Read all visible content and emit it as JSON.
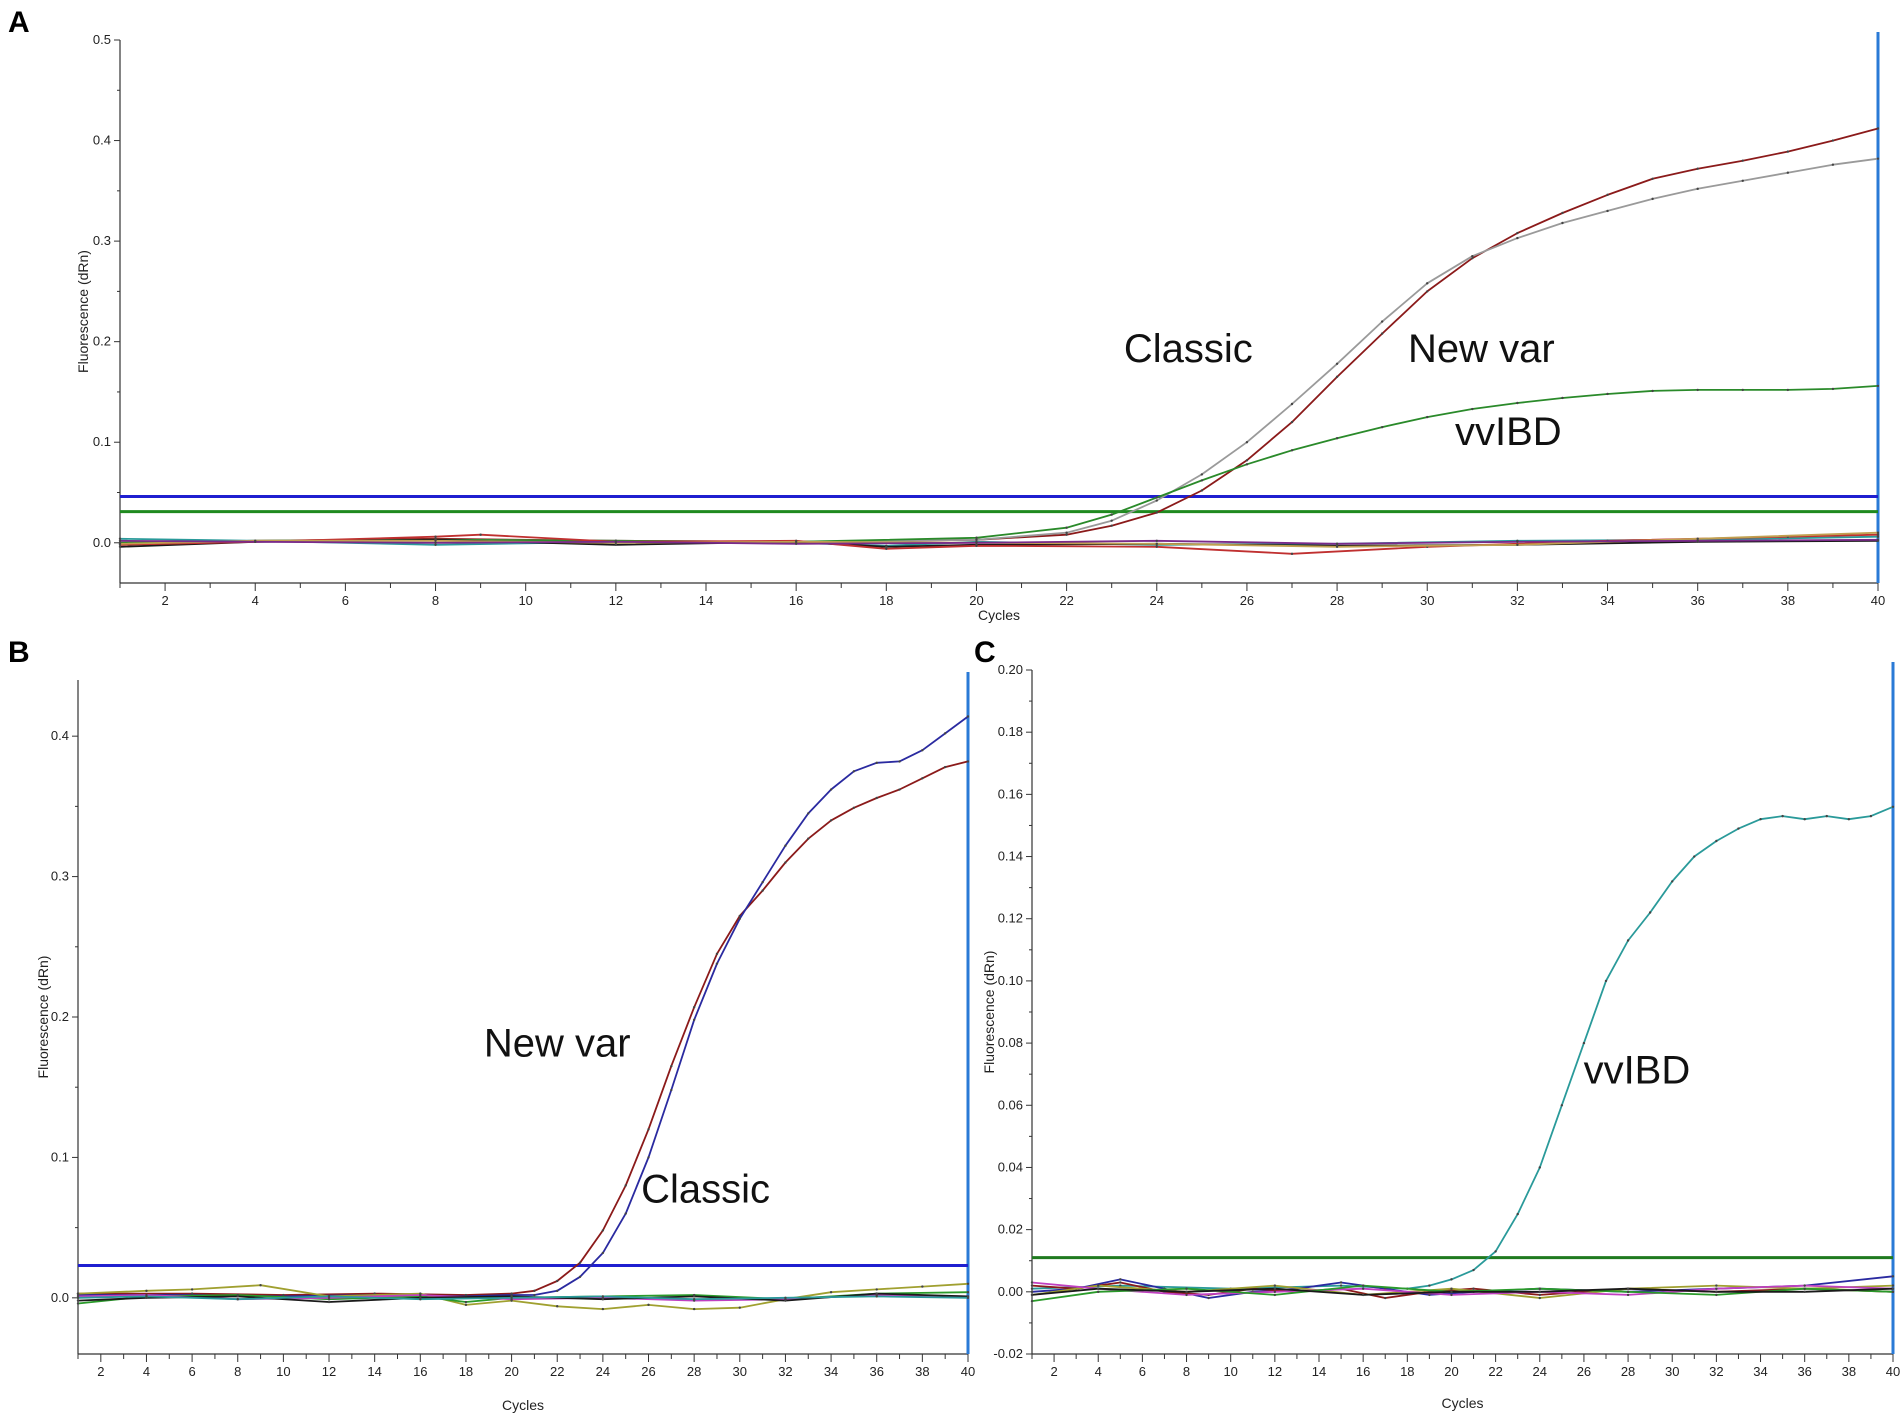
{
  "chart_data": [
    {
      "panel": "A",
      "type": "line",
      "xlabel": "Cycles",
      "ylabel": "Fluorescence (dRn)",
      "xlim": [
        1,
        40
      ],
      "ylim": [
        -0.04,
        0.5
      ],
      "xticks": [
        2,
        4,
        6,
        8,
        10,
        12,
        14,
        16,
        18,
        20,
        22,
        24,
        26,
        28,
        30,
        32,
        34,
        36,
        38,
        40
      ],
      "yticks": [
        0.0,
        0.1,
        0.2,
        0.3,
        0.4,
        0.5
      ],
      "ytick_labels": [
        "0.0",
        "0.1",
        "0.2",
        "0.3",
        "0.4",
        "0.5"
      ],
      "grid": false,
      "thresholds": [
        {
          "y": 0.046,
          "color": "#1f1fd0"
        },
        {
          "y": 0.031,
          "color": "#1f8a1f"
        }
      ],
      "annotations": [
        {
          "text": "Classic",
          "x": 24.7,
          "y": 0.18
        },
        {
          "text": "New var",
          "x": 31.2,
          "y": 0.18
        },
        {
          "text": "vvIBD",
          "x": 31.8,
          "y": 0.097
        }
      ],
      "series": [
        {
          "color": "#8b1a1a",
          "x": [
            1,
            4,
            8,
            12,
            16,
            20,
            22,
            23,
            24,
            25,
            26,
            27,
            28,
            29,
            30,
            31,
            32,
            33,
            34,
            35,
            36,
            37,
            38,
            39,
            40
          ],
          "y": [
            0,
            0.002,
            0.004,
            0.002,
            0.001,
            0.003,
            0.008,
            0.017,
            0.03,
            0.052,
            0.082,
            0.12,
            0.165,
            0.208,
            0.25,
            0.283,
            0.308,
            0.328,
            0.346,
            0.362,
            0.372,
            0.38,
            0.389,
            0.4,
            0.412
          ]
        },
        {
          "color": "#9a9a9a",
          "x": [
            1,
            4,
            8,
            12,
            16,
            20,
            22,
            23,
            24,
            25,
            26,
            27,
            28,
            29,
            30,
            31,
            32,
            33,
            34,
            35,
            36,
            37,
            38,
            39,
            40
          ],
          "y": [
            0,
            0.002,
            0.003,
            0.002,
            0.001,
            0.003,
            0.01,
            0.022,
            0.042,
            0.068,
            0.1,
            0.138,
            0.178,
            0.22,
            0.258,
            0.285,
            0.303,
            0.318,
            0.33,
            0.342,
            0.352,
            0.36,
            0.368,
            0.376,
            0.382
          ]
        },
        {
          "color": "#2a8a2a",
          "x": [
            1,
            4,
            8,
            12,
            16,
            20,
            22,
            23,
            24,
            25,
            26,
            27,
            28,
            29,
            30,
            31,
            32,
            33,
            34,
            35,
            36,
            37,
            38,
            39,
            40
          ],
          "y": [
            0,
            0.002,
            0.003,
            0.002,
            0.001,
            0.005,
            0.015,
            0.028,
            0.045,
            0.062,
            0.078,
            0.092,
            0.104,
            0.115,
            0.125,
            0.133,
            0.139,
            0.144,
            0.148,
            0.151,
            0.152,
            0.152,
            0.152,
            0.153,
            0.156
          ]
        },
        {
          "color": "#2a9a9a",
          "x": [
            1,
            4,
            8,
            12,
            16,
            18,
            20,
            24,
            28,
            32,
            36,
            40
          ],
          "y": [
            0.004,
            0.002,
            -0.002,
            0.001,
            0.0,
            -0.003,
            0.001,
            -0.002,
            -0.001,
            0.002,
            0.003,
            0.006
          ]
        },
        {
          "color": "#1a1a1a",
          "x": [
            1,
            4,
            8,
            12,
            16,
            18,
            20,
            24,
            28,
            32,
            36,
            40
          ],
          "y": [
            -0.004,
            0.001,
            0.003,
            -0.002,
            0.001,
            -0.004,
            -0.002,
            -0.001,
            -0.003,
            -0.002,
            0.001,
            0.002
          ]
        },
        {
          "color": "#c03030",
          "x": [
            1,
            4,
            8,
            9,
            12,
            16,
            18,
            20,
            24,
            27,
            30,
            34,
            38,
            40
          ],
          "y": [
            -0.002,
            0.001,
            0.006,
            0.008,
            0.001,
            0.002,
            -0.006,
            -0.003,
            -0.004,
            -0.011,
            -0.004,
            0.002,
            0.006,
            0.008
          ]
        },
        {
          "color": "#c0a050",
          "x": [
            1,
            4,
            8,
            12,
            16,
            20,
            24,
            28,
            32,
            36,
            40
          ],
          "y": [
            -0.001,
            0.002,
            0.002,
            0.0,
            0.001,
            0.0,
            -0.001,
            -0.004,
            -0.002,
            0.004,
            0.01
          ]
        },
        {
          "color": "#7a2a8a",
          "x": [
            1,
            4,
            8,
            12,
            16,
            20,
            24,
            28,
            32,
            36,
            40
          ],
          "y": [
            0.002,
            0.001,
            0.0,
            0.001,
            -0.001,
            0.0,
            0.002,
            -0.001,
            0.001,
            0.002,
            0.003
          ]
        }
      ]
    },
    {
      "panel": "B",
      "type": "line",
      "xlabel": "Cycles",
      "ylabel": "Fluorescence (dRn)",
      "xlim": [
        1,
        40
      ],
      "ylim": [
        -0.04,
        0.44
      ],
      "xticks": [
        2,
        4,
        6,
        8,
        10,
        12,
        14,
        16,
        18,
        20,
        22,
        24,
        26,
        28,
        30,
        32,
        34,
        36,
        38,
        40
      ],
      "yticks": [
        0.0,
        0.1,
        0.2,
        0.3,
        0.4
      ],
      "ytick_labels": [
        "0.0",
        "0.1",
        "0.2",
        "0.3",
        "0.4"
      ],
      "grid": false,
      "thresholds": [
        {
          "y": 0.023,
          "color": "#1f1fd0"
        }
      ],
      "annotations": [
        {
          "text": "New var",
          "x": 22.0,
          "y": 0.172
        },
        {
          "text": "Classic",
          "x": 28.5,
          "y": 0.068
        }
      ],
      "series": [
        {
          "color": "#8b1a1a",
          "x": [
            1,
            6,
            10,
            14,
            18,
            20,
            21,
            22,
            23,
            24,
            25,
            26,
            27,
            28,
            29,
            30,
            31,
            32,
            33,
            34,
            35,
            36,
            37,
            38,
            39,
            40
          ],
          "y": [
            0.003,
            0.003,
            0.002,
            0.003,
            0.002,
            0.003,
            0.005,
            0.012,
            0.025,
            0.048,
            0.08,
            0.12,
            0.165,
            0.207,
            0.245,
            0.272,
            0.29,
            0.31,
            0.327,
            0.34,
            0.349,
            0.356,
            0.362,
            0.37,
            0.378,
            0.382
          ]
        },
        {
          "color": "#2a2aa0",
          "x": [
            1,
            6,
            10,
            14,
            18,
            20,
            21,
            22,
            23,
            24,
            25,
            26,
            27,
            28,
            29,
            30,
            31,
            32,
            33,
            34,
            35,
            36,
            37,
            38,
            39,
            40
          ],
          "y": [
            0.002,
            0.002,
            0.001,
            0.002,
            0.001,
            0.002,
            0.002,
            0.005,
            0.015,
            0.032,
            0.06,
            0.1,
            0.148,
            0.198,
            0.238,
            0.27,
            0.296,
            0.322,
            0.345,
            0.362,
            0.375,
            0.381,
            0.382,
            0.39,
            0.402,
            0.414
          ]
        },
        {
          "color": "#a0a030",
          "x": [
            1,
            4,
            6,
            9,
            12,
            16,
            18,
            20,
            22,
            24,
            26,
            28,
            30,
            32,
            34,
            36,
            38,
            40
          ],
          "y": [
            0.003,
            0.005,
            0.006,
            0.009,
            0.001,
            0.003,
            -0.005,
            -0.002,
            -0.006,
            -0.008,
            -0.005,
            -0.008,
            -0.007,
            -0.001,
            0.004,
            0.006,
            0.008,
            0.01
          ]
        },
        {
          "color": "#2a9a2a",
          "x": [
            1,
            4,
            8,
            12,
            16,
            18,
            20,
            24,
            28,
            32,
            36,
            40
          ],
          "y": [
            -0.004,
            0.001,
            0.002,
            -0.001,
            0.001,
            -0.003,
            0.0,
            0.001,
            0.002,
            -0.001,
            0.003,
            0.004
          ]
        },
        {
          "color": "#c040c0",
          "x": [
            1,
            4,
            8,
            12,
            16,
            20,
            24,
            28,
            32,
            36,
            40
          ],
          "y": [
            0.001,
            0.002,
            -0.001,
            0.0,
            0.002,
            -0.001,
            0.0,
            -0.002,
            -0.001,
            0.002,
            0.001
          ]
        },
        {
          "color": "#1a1a1a",
          "x": [
            1,
            4,
            8,
            12,
            16,
            20,
            24,
            28,
            32,
            36,
            40
          ],
          "y": [
            -0.002,
            0.0,
            0.001,
            -0.003,
            0.0,
            0.001,
            -0.001,
            0.001,
            -0.002,
            0.003,
            0.001
          ]
        },
        {
          "color": "#2a9a9a",
          "x": [
            1,
            4,
            8,
            12,
            16,
            20,
            24,
            28,
            32,
            36,
            40
          ],
          "y": [
            0.0,
            0.001,
            -0.001,
            0.001,
            -0.001,
            0.0,
            0.001,
            -0.001,
            0.0,
            0.001,
            0.0
          ]
        }
      ]
    },
    {
      "panel": "C",
      "type": "line",
      "xlabel": "Cycles",
      "ylabel": "Fluorescence (dRn)",
      "xlim": [
        1,
        40
      ],
      "ylim": [
        -0.02,
        0.2
      ],
      "xticks": [
        2,
        4,
        6,
        8,
        10,
        12,
        14,
        16,
        18,
        20,
        22,
        24,
        26,
        28,
        30,
        32,
        34,
        36,
        38,
        40
      ],
      "yticks": [
        -0.02,
        0.0,
        0.02,
        0.04,
        0.06,
        0.08,
        0.1,
        0.12,
        0.14,
        0.16,
        0.18,
        0.2
      ],
      "ytick_labels": [
        "-0.02",
        "0.00",
        "0.02",
        "0.04",
        "0.06",
        "0.08",
        "0.10",
        "0.12",
        "0.14",
        "0.16",
        "0.18",
        "0.20"
      ],
      "grid": false,
      "thresholds": [
        {
          "y": 0.011,
          "color": "#1f7a1f"
        }
      ],
      "annotations": [
        {
          "text": "vvIBD",
          "x": 28.4,
          "y": 0.067
        }
      ],
      "series": [
        {
          "color": "#2a9a9a",
          "x": [
            1,
            5,
            10,
            15,
            18,
            19,
            20,
            21,
            22,
            23,
            24,
            25,
            26,
            27,
            28,
            29,
            30,
            31,
            32,
            33,
            34,
            35,
            36,
            37,
            38,
            39,
            40
          ],
          "y": [
            0.001,
            0.002,
            0.001,
            0.002,
            0.001,
            0.002,
            0.004,
            0.007,
            0.013,
            0.025,
            0.04,
            0.06,
            0.08,
            0.1,
            0.113,
            0.122,
            0.132,
            0.14,
            0.145,
            0.149,
            0.152,
            0.153,
            0.152,
            0.153,
            0.152,
            0.153,
            0.156
          ]
        },
        {
          "color": "#2a2aa0",
          "x": [
            1,
            3,
            5,
            7,
            9,
            11,
            13,
            15,
            17,
            19,
            21,
            24,
            28,
            32,
            36,
            40
          ],
          "y": [
            0.0,
            0.001,
            0.004,
            0.001,
            -0.002,
            0.0,
            0.001,
            0.003,
            0.001,
            -0.001,
            0.0,
            0.001,
            0.0,
            0.001,
            0.002,
            0.005
          ]
        },
        {
          "color": "#8b1a1a",
          "x": [
            1,
            3,
            5,
            7,
            9,
            11,
            13,
            15,
            17,
            19,
            21,
            24,
            28,
            32,
            36,
            40
          ],
          "y": [
            0.002,
            0.001,
            0.003,
            0.0,
            -0.001,
            0.001,
            0.0,
            0.001,
            -0.002,
            0.0,
            0.001,
            -0.001,
            0.001,
            0.0,
            0.001,
            0.0
          ]
        },
        {
          "color": "#a0a030",
          "x": [
            1,
            4,
            8,
            12,
            16,
            20,
            24,
            28,
            32,
            36,
            40
          ],
          "y": [
            -0.001,
            0.002,
            0.0,
            0.002,
            -0.001,
            0.001,
            -0.002,
            0.001,
            0.002,
            0.001,
            0.002
          ]
        },
        {
          "color": "#c040c0",
          "x": [
            1,
            4,
            8,
            12,
            16,
            20,
            24,
            28,
            32,
            36,
            40
          ],
          "y": [
            0.003,
            0.001,
            -0.001,
            0.0,
            0.001,
            -0.001,
            0.0,
            -0.001,
            0.001,
            0.002,
            0.001
          ]
        },
        {
          "color": "#2a9a2a",
          "x": [
            1,
            4,
            8,
            12,
            16,
            20,
            24,
            28,
            32,
            36,
            40
          ],
          "y": [
            -0.003,
            0.0,
            0.001,
            -0.001,
            0.002,
            0.0,
            0.001,
            0.0,
            -0.001,
            0.001,
            0.0
          ]
        },
        {
          "color": "#1a1a1a",
          "x": [
            1,
            4,
            8,
            12,
            16,
            20,
            24,
            28,
            32,
            36,
            40
          ],
          "y": [
            -0.001,
            0.001,
            0.0,
            0.001,
            -0.001,
            0.0,
            0.0,
            0.001,
            0.0,
            0.0,
            0.001
          ]
        }
      ]
    }
  ]
}
